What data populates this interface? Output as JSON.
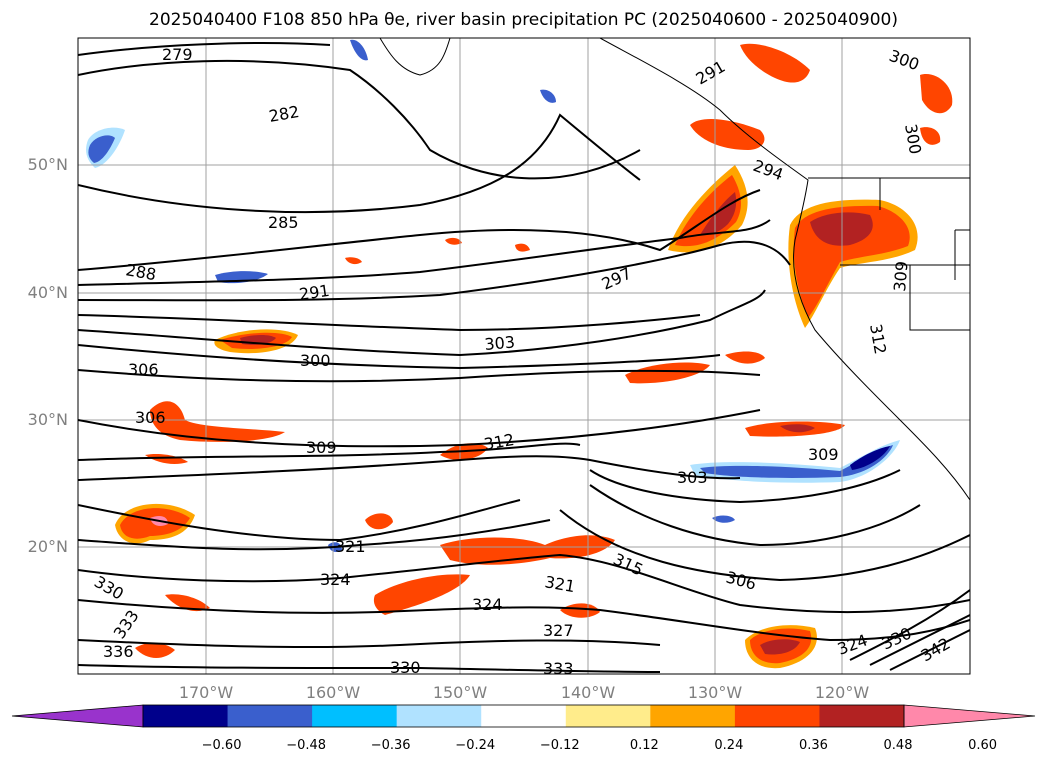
{
  "title": "2025040400 F108 850 hPa θe, river basin precipitation PC (2025040600 - 2025040900)",
  "lat_labels": [
    "50°N",
    "40°N",
    "30°N",
    "20°N"
  ],
  "lon_labels": [
    "170°W",
    "160°W",
    "150°W",
    "140°W",
    "130°W",
    "120°W"
  ],
  "contour_labels": [
    "279",
    "282",
    "285",
    "288",
    "291",
    "297",
    "300",
    "303",
    "306",
    "306",
    "309",
    "312",
    "303",
    "309",
    "306",
    "315",
    "321",
    "324",
    "324",
    "321",
    "327",
    "330",
    "333",
    "336",
    "330",
    "333",
    "300",
    "291",
    "294",
    "300",
    "312",
    "309",
    "324",
    "330",
    "342"
  ],
  "colorbar": {
    "colors": [
      "#9933cc",
      "#00008b",
      "#3a5fcd",
      "#00bfff",
      "#b0e2ff",
      "#ffffff",
      "#ffec8b",
      "#ffa500",
      "#ff4500",
      "#b22222",
      "#ff88aa"
    ],
    "ticks": [
      "−0.60",
      "−0.48",
      "−0.36",
      "−0.24",
      "−0.12",
      "0.12",
      "0.24",
      "0.36",
      "0.48",
      "0.60"
    ]
  }
}
